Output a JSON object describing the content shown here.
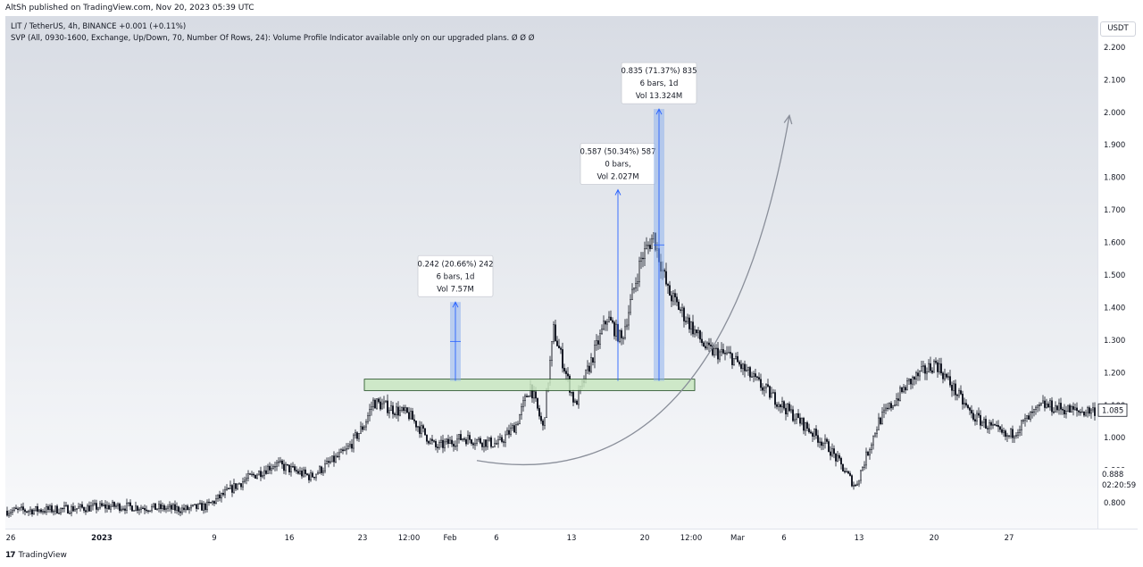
{
  "header": {
    "published": "AltSh published on TradingView.com, Nov 20, 2023 05:39 UTC",
    "symbol_line": "LIT / TetherUS, 4h, BINANCE  +0.001 (+0.11%)",
    "indicator_line": "SVP (All, 0930-1600, Exchange, Up/Down, 70, Number Of Rows, 24): Volume Profile Indicator available only on our upgraded plans.  Ø  Ø  Ø"
  },
  "currency_button": "USDT",
  "footer": {
    "brand": "TradingView",
    "brand_mark": "17"
  },
  "price_labels": {
    "last": "1.085",
    "marker": "0.888",
    "countdown": "02:20:59"
  },
  "colors": {
    "measure_fill": "#8fb3ec",
    "measure_line": "#2962ff",
    "zone_fill": "#c8e6c0",
    "arrow": "#8a8f9a",
    "candle": "#131722"
  },
  "chart_data": {
    "type": "candlestick",
    "ylim": [
      0.74,
      2.26
    ],
    "y_ticks": [
      "2.200",
      "2.100",
      "2.000",
      "1.900",
      "1.800",
      "1.700",
      "1.600",
      "1.500",
      "1.400",
      "1.300",
      "1.200",
      "1.100",
      "1.000",
      "0.900",
      "0.800"
    ],
    "y_tick_values": [
      2.2,
      2.1,
      2.0,
      1.9,
      1.8,
      1.7,
      1.6,
      1.5,
      1.4,
      1.3,
      1.2,
      1.1,
      1.0,
      0.9,
      0.8
    ],
    "x_ticks": [
      "26",
      "2023",
      "9",
      "16",
      "23",
      "12:00",
      "Feb",
      "6",
      "13",
      "20",
      "12:00",
      "Mar",
      "6",
      "13",
      "20",
      "27"
    ],
    "x_tick_bars": [
      2,
      53,
      116,
      158,
      199,
      225,
      248,
      274,
      316,
      357,
      383,
      409,
      435,
      477,
      519,
      561
    ],
    "bar_count": 610,
    "anchors": [
      [
        0,
        0.775
      ],
      [
        30,
        0.78
      ],
      [
        60,
        0.79
      ],
      [
        80,
        0.785
      ],
      [
        100,
        0.78
      ],
      [
        112,
        0.79
      ],
      [
        130,
        0.86
      ],
      [
        150,
        0.92
      ],
      [
        170,
        0.88
      ],
      [
        190,
        0.96
      ],
      [
        200,
        1.04
      ],
      [
        205,
        1.11
      ],
      [
        210,
        1.1
      ],
      [
        225,
        1.07
      ],
      [
        240,
        0.97
      ],
      [
        255,
        1.0
      ],
      [
        275,
        0.98
      ],
      [
        285,
        1.04
      ],
      [
        293,
        1.16
      ],
      [
        300,
        1.03
      ],
      [
        306,
        1.33
      ],
      [
        318,
        1.1
      ],
      [
        336,
        1.37
      ],
      [
        344,
        1.3
      ],
      [
        355,
        1.55
      ],
      [
        362,
        1.62
      ],
      [
        370,
        1.45
      ],
      [
        392,
        1.27
      ],
      [
        405,
        1.25
      ],
      [
        420,
        1.17
      ],
      [
        440,
        1.07
      ],
      [
        460,
        0.97
      ],
      [
        475,
        0.85
      ],
      [
        488,
        1.05
      ],
      [
        505,
        1.17
      ],
      [
        520,
        1.23
      ],
      [
        540,
        1.07
      ],
      [
        560,
        1.0
      ],
      [
        580,
        1.1
      ],
      [
        600,
        1.08
      ],
      [
        609,
        1.085
      ]
    ],
    "zone": {
      "bar_from": 200,
      "bar_to": 385,
      "low": 1.145,
      "high": 1.18
    },
    "measurements": [
      {
        "bar_from": 248,
        "bar_to": 254,
        "low": 1.175,
        "high": 1.417,
        "label": [
          "0.242 (20.66%) 242",
          "6 bars, 1d",
          "Vol 7.57M"
        ]
      },
      {
        "bar_from": 342,
        "bar_to": 342,
        "low": 1.175,
        "high": 1.762,
        "label": [
          "0.587 (50.34%) 587",
          "0 bars,",
          "Vol 2.027M"
        ]
      },
      {
        "bar_from": 362,
        "bar_to": 368,
        "low": 1.175,
        "high": 2.01,
        "label": [
          "0.835 (71.37%) 835",
          "6 bars, 1d",
          "Vol 13.324M"
        ]
      }
    ],
    "arrow_curve": {
      "start": [
        263,
        0.93
      ],
      "control": [
        400,
        0.8
      ],
      "end": [
        438,
        1.99
      ]
    }
  }
}
